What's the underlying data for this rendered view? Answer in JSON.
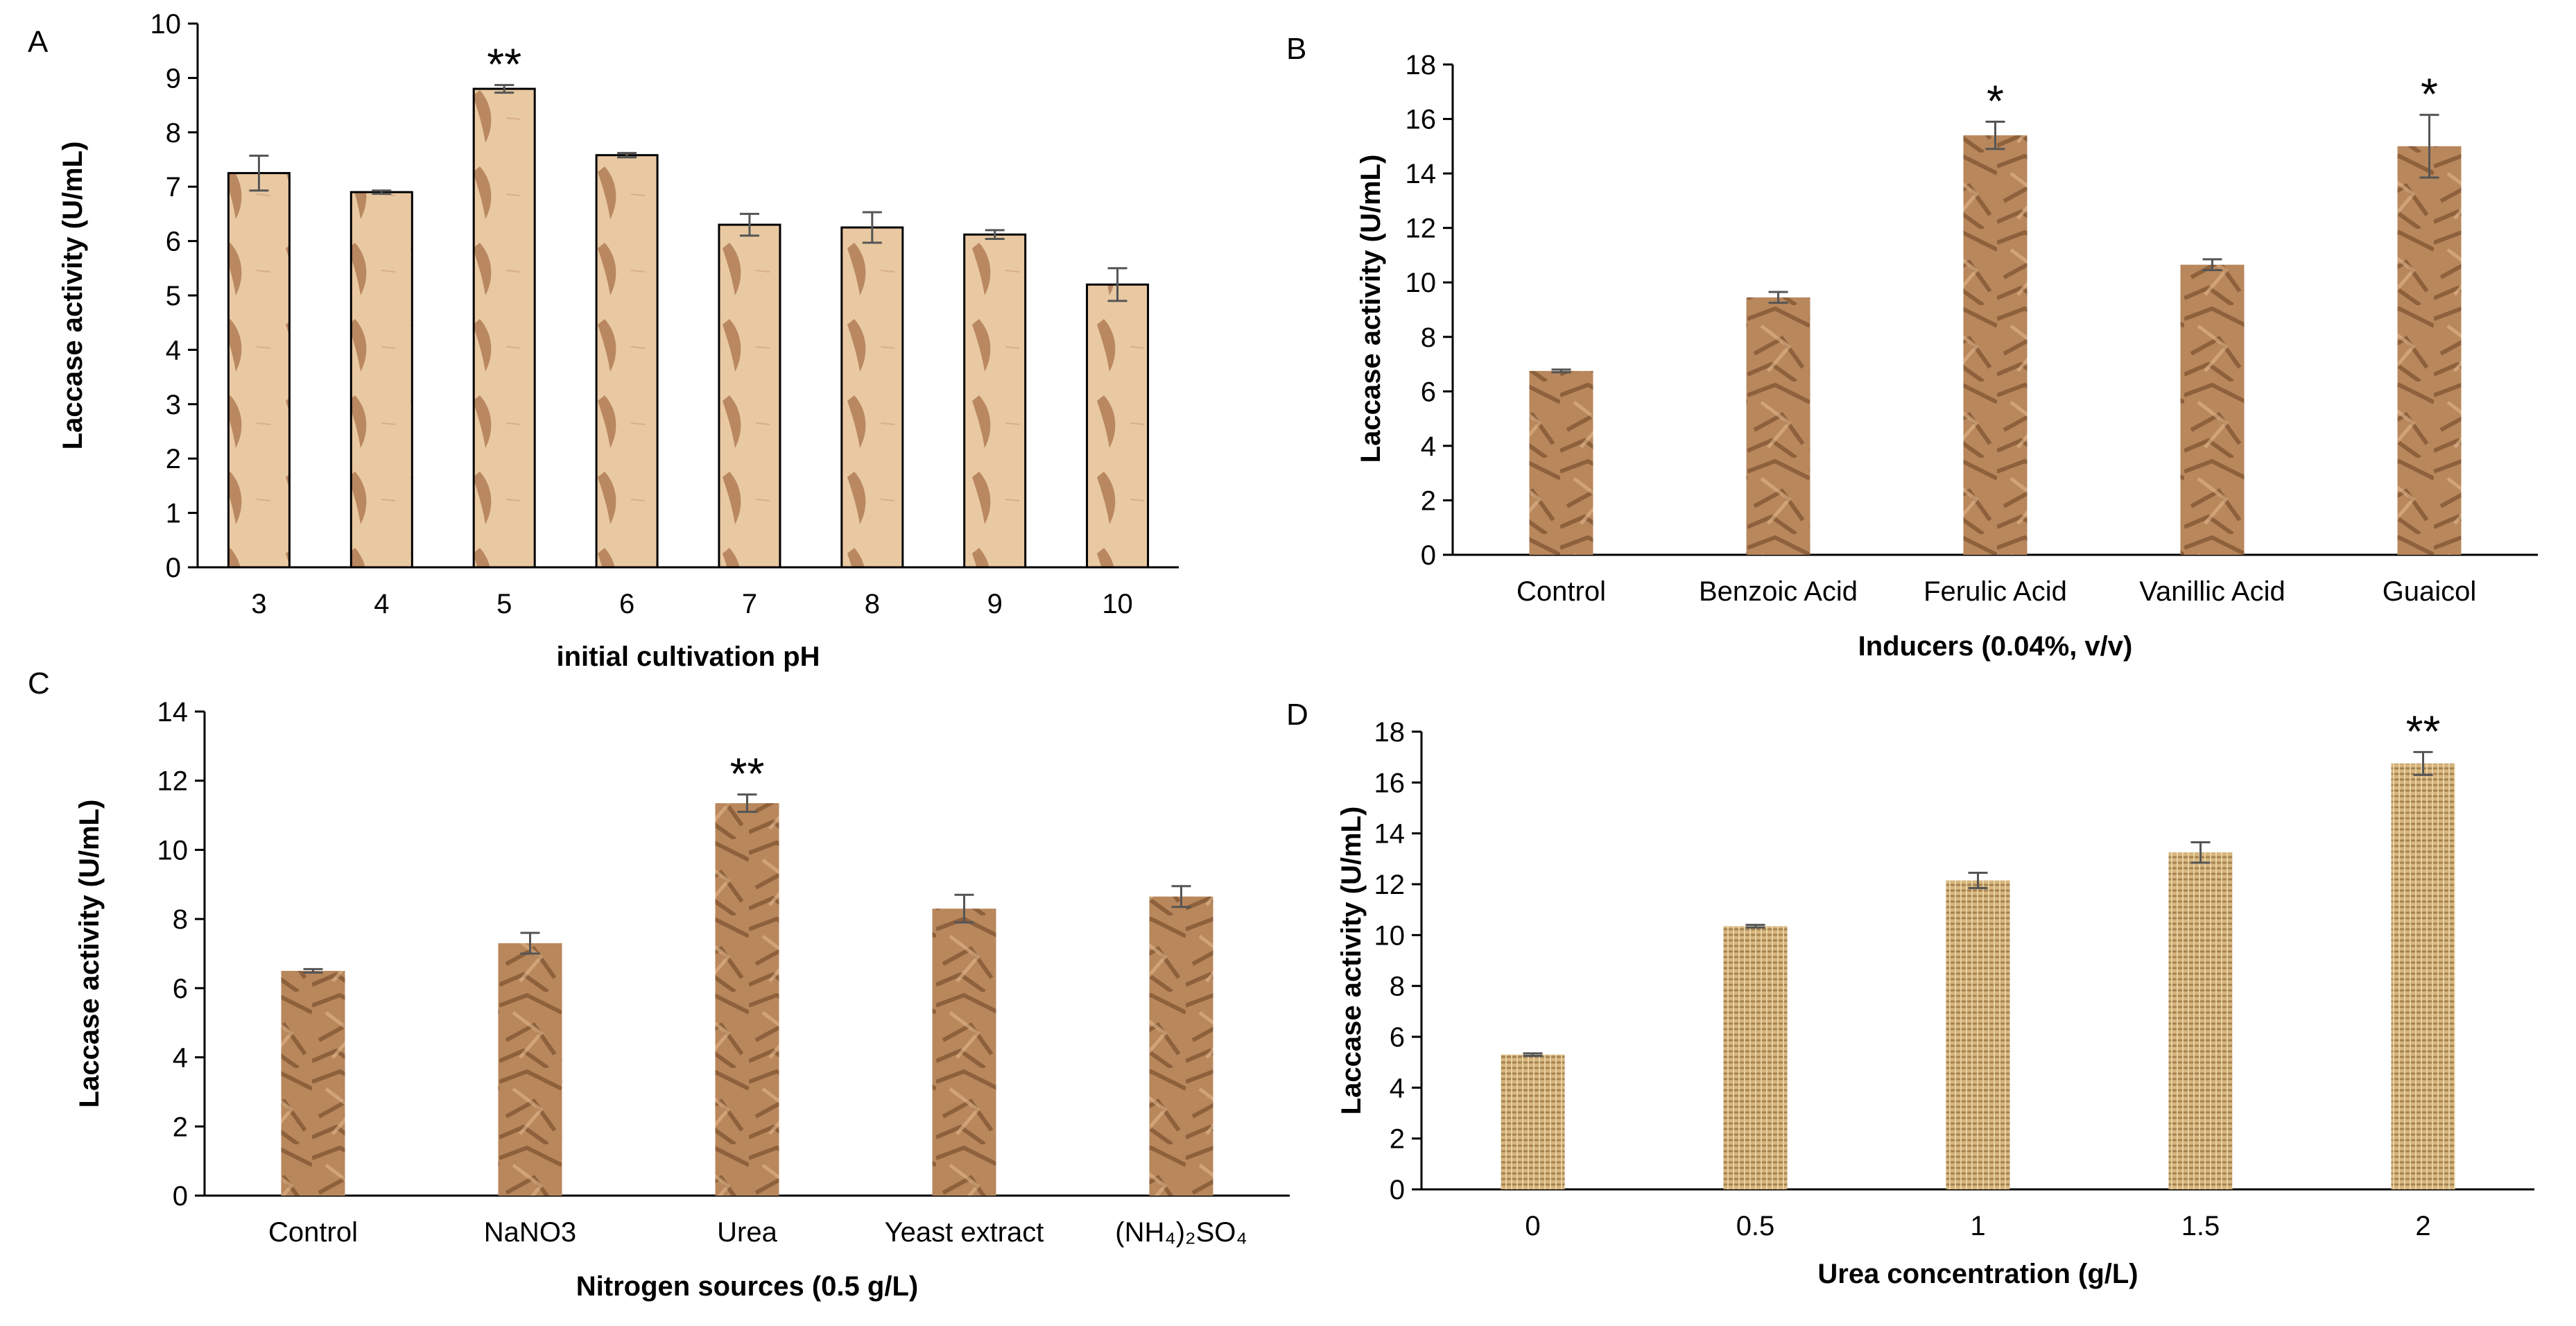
{
  "figure_panels": [
    "A",
    "B",
    "C",
    "D"
  ],
  "chart_data": [
    {
      "panel": "A",
      "type": "bar",
      "categories": [
        "3",
        "4",
        "5",
        "6",
        "7",
        "8",
        "9",
        "10"
      ],
      "series": [
        {
          "name": "Laccase activity",
          "values": [
            7.25,
            6.9,
            8.8,
            7.58,
            6.3,
            6.25,
            6.12,
            5.2
          ]
        }
      ],
      "errors": [
        0.32,
        0.03,
        0.07,
        0.04,
        0.2,
        0.28,
        0.08,
        0.3
      ],
      "significance": [
        "",
        "",
        "**",
        "",
        "",
        "",
        "",
        ""
      ],
      "ticks": [
        "0",
        "1",
        "2",
        "3",
        "4",
        "5",
        "6",
        "7",
        "8",
        "9",
        "10"
      ],
      "ylim": [
        0,
        10
      ],
      "xlabel": "initial cultivation pH",
      "ylabel": "Laccase activity (U/mL)",
      "title": "",
      "fill": "#e9c9a2",
      "accent": "#a9734a"
    },
    {
      "panel": "B",
      "type": "bar",
      "categories": [
        "Control",
        "Benzoic Acid",
        "Ferulic Acid",
        "Vanillic Acid",
        "Guaicol"
      ],
      "series": [
        {
          "name": "Laccase activity",
          "values": [
            6.75,
            9.45,
            15.4,
            10.65,
            15.0
          ]
        }
      ],
      "errors": [
        0.05,
        0.2,
        0.5,
        0.2,
        1.15
      ],
      "significance": [
        "",
        "",
        "*",
        "",
        "*"
      ],
      "ticks": [
        "0",
        "2",
        "4",
        "6",
        "8",
        "10",
        "12",
        "14",
        "16",
        "18"
      ],
      "ylim": [
        0,
        18
      ],
      "xlabel": "Inducers (0.04%, v/v)",
      "ylabel": "Laccase activity (U/mL)",
      "title": "",
      "fill": "#b9875c",
      "accent": "#6a4122"
    },
    {
      "panel": "C",
      "type": "bar",
      "categories": [
        "Control",
        "NaNO3",
        "Urea",
        "Yeast extract",
        "(NH₄)₂SO₄"
      ],
      "series": [
        {
          "name": "Laccase activity",
          "values": [
            6.5,
            7.3,
            11.35,
            8.3,
            8.65
          ]
        }
      ],
      "errors": [
        0.05,
        0.3,
        0.25,
        0.4,
        0.3
      ],
      "significance": [
        "",
        "",
        "**",
        "",
        ""
      ],
      "ticks": [
        "0",
        "2",
        "4",
        "6",
        "8",
        "10",
        "12",
        "14"
      ],
      "ylim": [
        0,
        14
      ],
      "xlabel": "Nitrogen sources (0.5 g/L)",
      "ylabel": "Laccase activity (U/mL)",
      "title": "",
      "fill": "#b9875c",
      "accent": "#6a4122"
    },
    {
      "panel": "D",
      "type": "bar",
      "categories": [
        "0",
        "0.5",
        "1",
        "1.5",
        "2"
      ],
      "series": [
        {
          "name": "Laccase activity",
          "values": [
            5.3,
            10.35,
            12.15,
            13.25,
            16.75
          ]
        }
      ],
      "errors": [
        0.05,
        0.05,
        0.3,
        0.4,
        0.45
      ],
      "significance": [
        "",
        "",
        "",
        "",
        "**"
      ],
      "ticks": [
        "0",
        "2",
        "4",
        "6",
        "8",
        "10",
        "12",
        "14",
        "16",
        "18"
      ],
      "ylim": [
        0,
        18
      ],
      "xlabel": "Urea concentration (g/L)",
      "ylabel": "Laccase activity (U/mL)",
      "title": "",
      "fill": "#d7b67e",
      "accent": "#8e6a3a"
    }
  ]
}
